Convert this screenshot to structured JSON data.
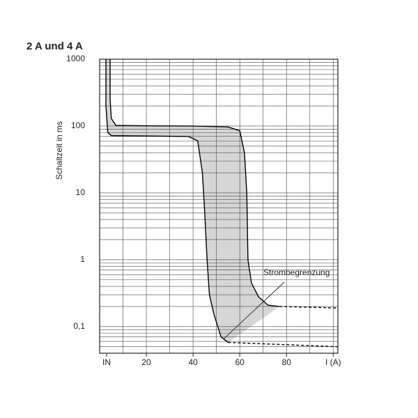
{
  "chart_data": {
    "type": "line",
    "title": "2 A und 4 A",
    "y_label": "Schaltzeit in ms",
    "log_y": true,
    "grid": true,
    "minor_grid": true,
    "xlim": [
      0,
      102
    ],
    "ylim": [
      0.04,
      1000
    ],
    "xticks": [
      {
        "value": 3,
        "label": "IN"
      },
      20,
      40,
      60,
      80,
      {
        "value": 100,
        "label": "I (A)"
      }
    ],
    "yticks": [
      {
        "value": 0.1,
        "label": "0,1"
      },
      1,
      10,
      100,
      1000
    ],
    "band_color": "#d6d6d6",
    "series": [
      {
        "color": "#000000",
        "dashed": false,
        "x": [
          4.5,
          4.5,
          5,
          7,
          20,
          40,
          55,
          60,
          62,
          63,
          63.5,
          65,
          68,
          72,
          77
        ],
        "values": [
          1000,
          250,
          130,
          102,
          101,
          100,
          97,
          85,
          40,
          10,
          1,
          0.45,
          0.28,
          0.21,
          0.2
        ]
      },
      {
        "color": "#000000",
        "dashed": false,
        "x": [
          2.7,
          2.7,
          3.5,
          5,
          20,
          38,
          42,
          44,
          45,
          46,
          47,
          49,
          52,
          55
        ],
        "values": [
          1000,
          200,
          80,
          72,
          71,
          70,
          60,
          20,
          5,
          1,
          0.3,
          0.15,
          0.07,
          0.058
        ]
      },
      {
        "color": "#000000",
        "dashed": true,
        "x": [
          77,
          102
        ],
        "values": [
          0.2,
          0.19
        ]
      },
      {
        "color": "#000000",
        "dashed": true,
        "x": [
          55,
          102
        ],
        "values": [
          0.058,
          0.05
        ]
      }
    ],
    "annotation": {
      "text": "Strombegrenzung",
      "x": 53,
      "y": 0.065
    }
  }
}
